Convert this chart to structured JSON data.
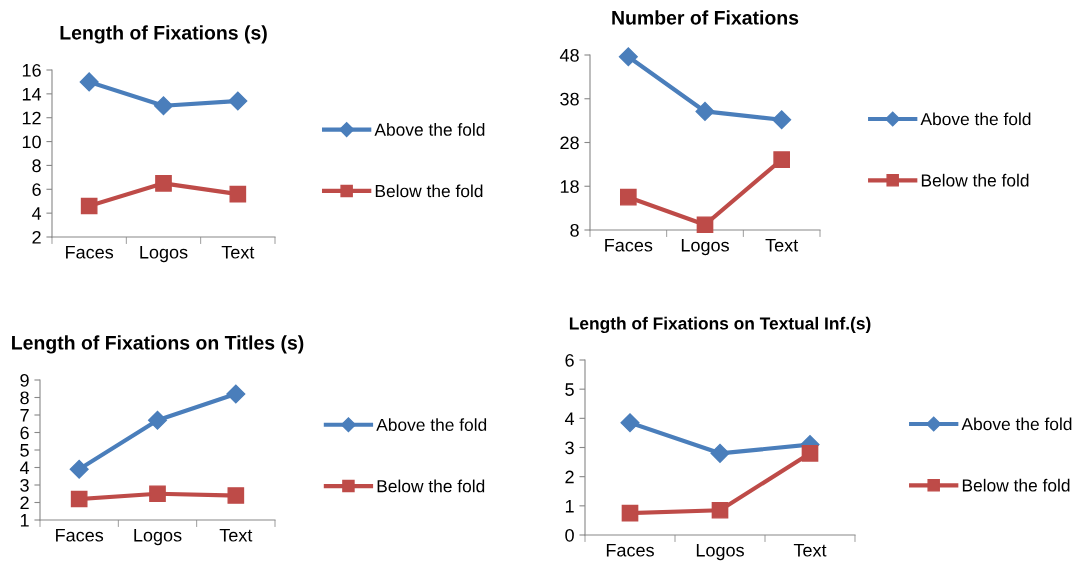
{
  "chart_data": [
    {
      "type": "line",
      "title": "Length of Fixations (s)",
      "categories": [
        "Faces",
        "Logos",
        "Text"
      ],
      "ylim": [
        2,
        16
      ],
      "yticks": [
        2,
        4,
        6,
        8,
        10,
        12,
        14,
        16
      ],
      "grid": false,
      "legend": "right",
      "series": [
        {
          "name": "Above the fold",
          "color": "#4a7ebb",
          "marker": "diamond",
          "values": [
            15.0,
            13.0,
            13.4
          ]
        },
        {
          "name": "Below the fold",
          "color": "#be4b48",
          "marker": "square",
          "values": [
            4.6,
            6.5,
            5.6
          ]
        }
      ]
    },
    {
      "type": "line",
      "title": "Number of Fixations",
      "categories": [
        "Faces",
        "Logos",
        "Text"
      ],
      "ylim": [
        8,
        48
      ],
      "yticks": [
        8,
        18,
        28,
        38,
        48
      ],
      "grid": false,
      "legend": "right",
      "series": [
        {
          "name": "Above the fold",
          "color": "#4a7ebb",
          "marker": "diamond",
          "values": [
            47.6,
            35.1,
            33.2
          ]
        },
        {
          "name": "Below the fold",
          "color": "#be4b48",
          "marker": "square",
          "values": [
            15.5,
            9.2,
            24.1
          ]
        }
      ]
    },
    {
      "type": "line",
      "title": "Length of Fixations on Titles (s)",
      "categories": [
        "Faces",
        "Logos",
        "Text"
      ],
      "ylim": [
        1,
        9
      ],
      "yticks": [
        1,
        2,
        3,
        4,
        5,
        6,
        7,
        8,
        9
      ],
      "grid": false,
      "legend": "right",
      "series": [
        {
          "name": "Above the fold",
          "color": "#4a7ebb",
          "marker": "diamond",
          "values": [
            3.9,
            6.7,
            8.2
          ]
        },
        {
          "name": "Below the fold",
          "color": "#be4b48",
          "marker": "square",
          "values": [
            2.2,
            2.5,
            2.4
          ]
        }
      ]
    },
    {
      "type": "line",
      "title": "Length of Fixations on Textual Inf.(s)",
      "categories": [
        "Faces",
        "Logos",
        "Text"
      ],
      "ylim": [
        0,
        6
      ],
      "yticks": [
        0,
        1,
        2,
        3,
        4,
        5,
        6
      ],
      "grid": false,
      "legend": "right",
      "series": [
        {
          "name": "Above the fold",
          "color": "#4a7ebb",
          "marker": "diamond",
          "values": [
            3.85,
            2.8,
            3.1
          ]
        },
        {
          "name": "Below the fold",
          "color": "#be4b48",
          "marker": "square",
          "values": [
            0.75,
            0.85,
            2.8
          ]
        }
      ]
    }
  ]
}
